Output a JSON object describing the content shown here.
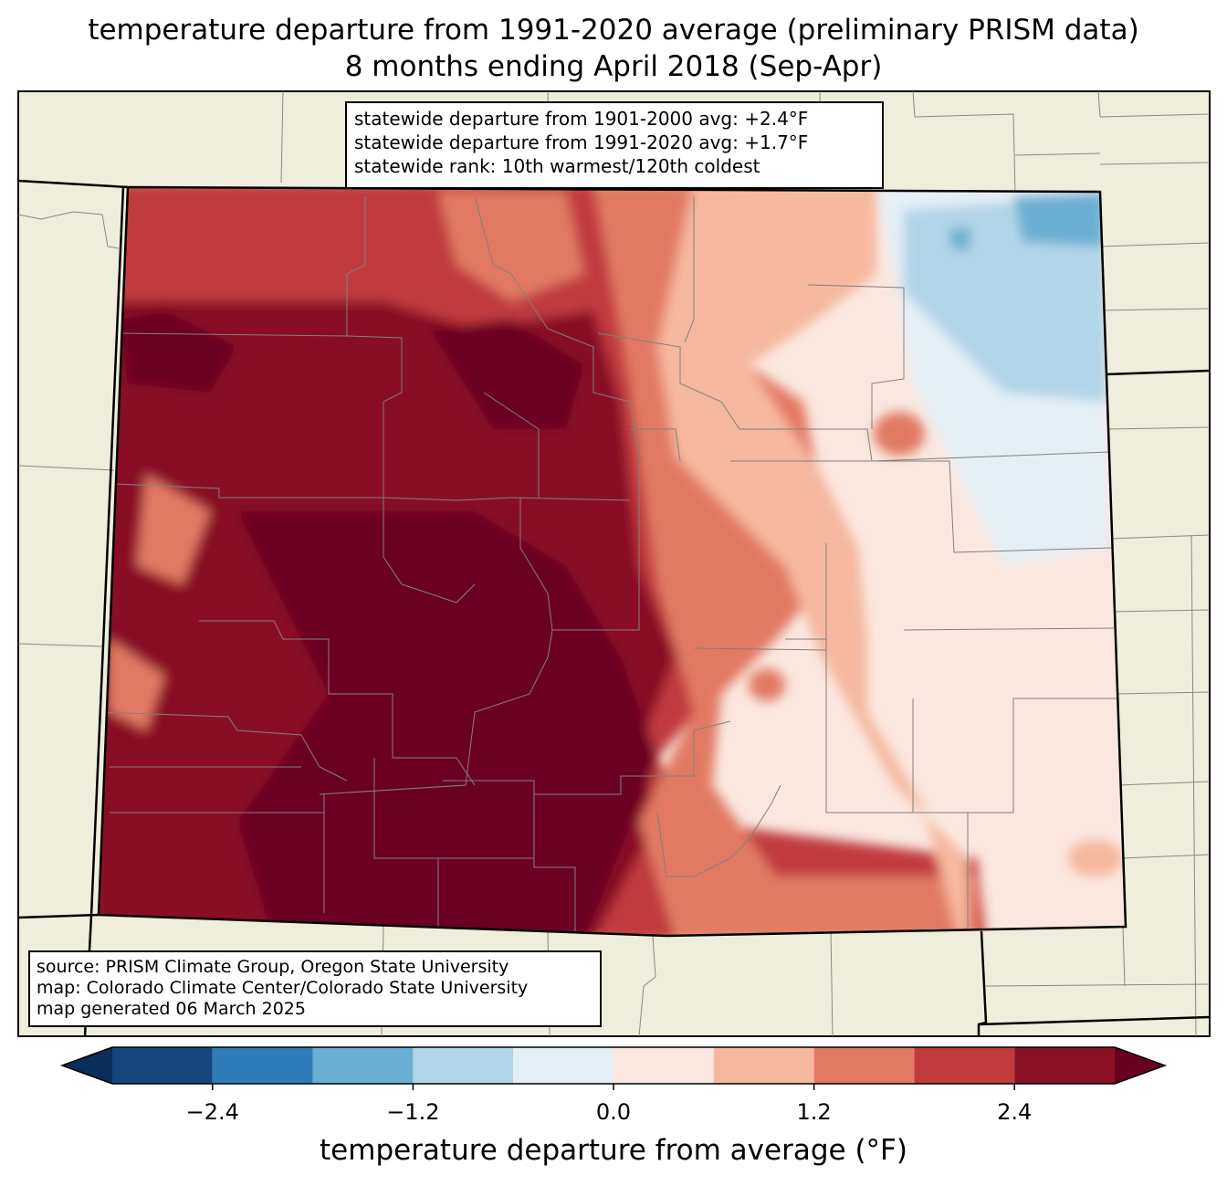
{
  "title": {
    "line1": "temperature departure from 1991-2020 average (preliminary PRISM data)",
    "line2": "8 months ending April 2018 (Sep-Apr)"
  },
  "stats_box": {
    "line1": "statewide departure from 1901-2000 avg: +2.4°F",
    "line2": "statewide departure from 1991-2020 avg: +1.7°F",
    "line3": "statewide rank: 10th warmest/120th coldest"
  },
  "source_box": {
    "line1": "source: PRISM Climate Group, Oregon State University",
    "line2": "map: Colorado Climate Center/Colorado State University",
    "line3": "map generated 06 March 2025"
  },
  "colorbar": {
    "label": "temperature departure from average (°F)",
    "ticks": [
      "−2.4",
      "−1.2",
      "0.0",
      "1.2",
      "2.4"
    ],
    "tick_values": [
      -2.4,
      -1.2,
      0.0,
      1.2,
      2.4
    ],
    "bounds": [
      -3.0,
      -2.4,
      -1.8,
      -1.2,
      -0.6,
      0.0,
      0.6,
      1.2,
      1.8,
      2.4,
      3.0
    ],
    "colors": [
      "#17467f",
      "#2f7cb8",
      "#6aafd3",
      "#b0d5e7",
      "#e4eef5",
      "#fae7df",
      "#f6b89d",
      "#e27a63",
      "#c13a3c",
      "#8a1126"
    ],
    "under_color": "#0a2d5a",
    "over_color": "#6a0020"
  },
  "land_color": "#efeddb"
}
